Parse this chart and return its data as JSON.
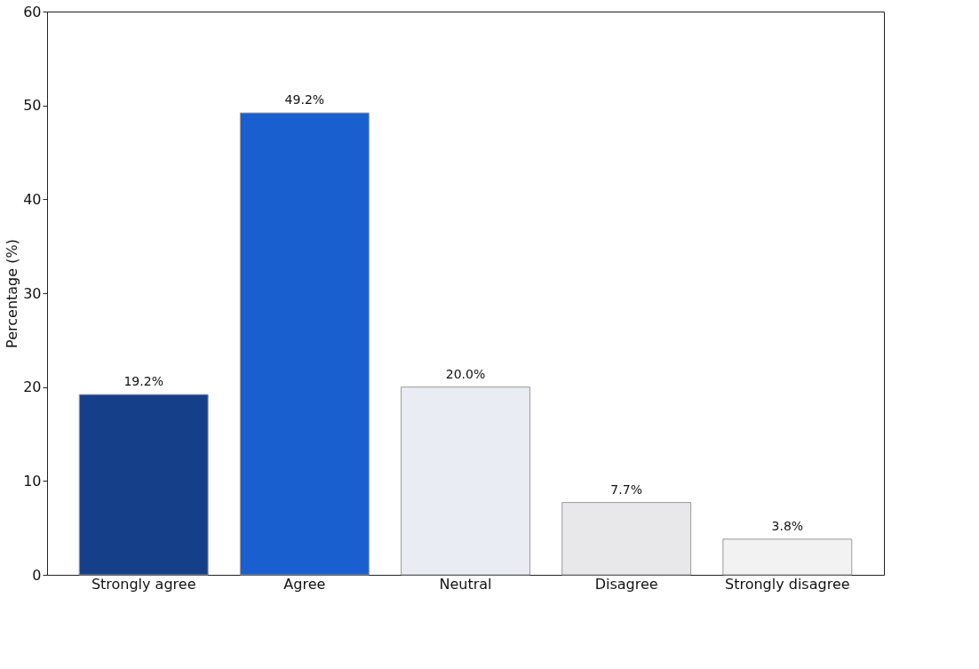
{
  "chart_data": {
    "type": "bar",
    "ylabel": "Percentage (%)",
    "categories": [
      "Strongly agree",
      "Agree",
      "Neutral",
      "Disagree",
      "Strongly disagree"
    ],
    "values": [
      19.2,
      49.2,
      20.0,
      7.7,
      3.8
    ],
    "colors": [
      "#163f8a",
      "#1a5fd0",
      "#e9ecf3",
      "#e8e8ea",
      "#f2f2f2"
    ],
    "value_labels": [
      "19.2%",
      "49.2%",
      "20.0%",
      "7.7%",
      "3.8%"
    ],
    "ylim": [
      0,
      60
    ],
    "yticks": [
      0,
      10,
      20,
      30,
      40,
      50,
      60
    ],
    "grid": false
  }
}
